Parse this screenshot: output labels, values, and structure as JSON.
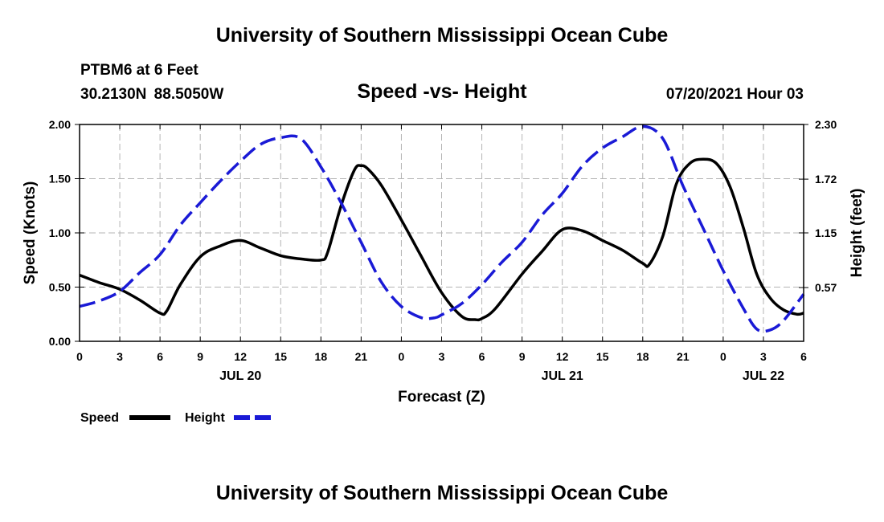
{
  "header": {
    "title": "University of Southern Mississippi Ocean Cube",
    "station": "PTBM6 at 6 Feet",
    "coords": "30.2130N  88.5050W",
    "chart_title": "Speed -vs- Height",
    "date": "07/20/2021 Hour 03"
  },
  "footer": {
    "title": "University of Southern Mississippi Ocean Cube"
  },
  "legend": {
    "speed_label": "Speed",
    "height_label": "Height"
  },
  "colors": {
    "speed": "#000000",
    "height": "#1a1ad6",
    "grid": "#b4b4b4"
  },
  "chart_data": {
    "type": "line",
    "title": "Speed -vs- Height",
    "xlabel": "Forecast (Z)",
    "ylabel": "Speed (Knots)",
    "y2label": "Height (feet)",
    "xlim": [
      0,
      54
    ],
    "ylim": [
      0,
      2.0
    ],
    "y2lim": [
      0,
      2.3
    ],
    "x_ticks": [
      0,
      3,
      6,
      9,
      12,
      15,
      18,
      21,
      24,
      27,
      30,
      33,
      36,
      39,
      42,
      45,
      48,
      51,
      54
    ],
    "x_tick_labels": [
      "0",
      "3",
      "6",
      "9",
      "12",
      "15",
      "18",
      "21",
      "0",
      "3",
      "6",
      "9",
      "12",
      "15",
      "18",
      "21",
      "0",
      "3",
      "6"
    ],
    "y_ticks": [
      0,
      0.5,
      1.0,
      1.5,
      2.0
    ],
    "y_tick_labels": [
      "0.00",
      "0.50",
      "1.00",
      "1.50",
      "2.00"
    ],
    "y2_ticks": [
      0.57,
      1.15,
      1.72,
      2.3
    ],
    "y2_tick_labels": [
      "0.57",
      "1.15",
      "1.72",
      "2.30"
    ],
    "day_labels": [
      {
        "x": 12,
        "label": "JUL 20"
      },
      {
        "x": 36,
        "label": "JUL 21"
      },
      {
        "x": 51,
        "label": "JUL 22"
      }
    ],
    "series": [
      {
        "name": "Speed",
        "axis": "left",
        "style": "solid",
        "x": [
          0,
          1.5,
          3,
          4.5,
          6,
          6.5,
          7.5,
          9,
          10.5,
          12,
          13.5,
          15,
          16.5,
          18,
          18.5,
          19.5,
          20.5,
          21,
          21.5,
          22.5,
          24,
          25.5,
          27,
          28.5,
          29.5,
          30,
          31,
          33,
          34.5,
          36,
          37.5,
          39,
          40.5,
          42,
          42.5,
          43.5,
          44.5,
          45.5,
          46.5,
          47.5,
          48.5,
          49.5,
          50.5,
          51.5,
          52.5,
          53.5,
          54
        ],
        "values": [
          0.61,
          0.54,
          0.48,
          0.38,
          0.26,
          0.28,
          0.52,
          0.78,
          0.88,
          0.93,
          0.86,
          0.79,
          0.76,
          0.75,
          0.82,
          1.25,
          1.58,
          1.62,
          1.59,
          1.44,
          1.12,
          0.78,
          0.45,
          0.23,
          0.2,
          0.21,
          0.3,
          0.62,
          0.83,
          1.03,
          1.02,
          0.93,
          0.84,
          0.72,
          0.71,
          0.97,
          1.45,
          1.64,
          1.68,
          1.64,
          1.43,
          1.05,
          0.62,
          0.4,
          0.29,
          0.25,
          0.26
        ]
      },
      {
        "name": "Height",
        "axis": "right",
        "style": "dashed",
        "x": [
          0,
          1.5,
          3,
          4.5,
          6,
          7.5,
          9,
          10.5,
          12,
          13.5,
          15,
          16.5,
          18,
          19.5,
          21,
          22.5,
          24,
          25.5,
          26.5,
          27,
          28.5,
          30,
          31.5,
          33,
          34.5,
          36,
          37.5,
          39,
          40.5,
          42,
          43.5,
          45,
          46.5,
          48,
          49.5,
          50.5,
          51.5,
          52.5,
          54
        ],
        "values": [
          0.37,
          0.43,
          0.53,
          0.73,
          0.92,
          1.23,
          1.47,
          1.7,
          1.91,
          2.09,
          2.16,
          2.15,
          1.85,
          1.47,
          1.05,
          0.63,
          0.37,
          0.25,
          0.25,
          0.28,
          0.4,
          0.6,
          0.84,
          1.05,
          1.34,
          1.57,
          1.86,
          2.05,
          2.17,
          2.28,
          2.15,
          1.65,
          1.2,
          0.75,
          0.35,
          0.13,
          0.12,
          0.22,
          0.5
        ]
      }
    ]
  }
}
